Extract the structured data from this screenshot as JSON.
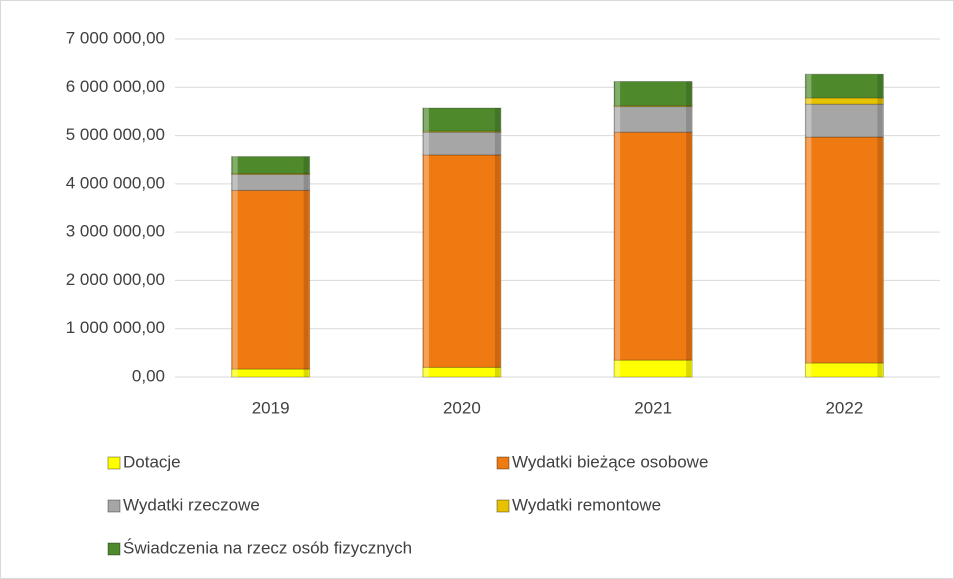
{
  "chart_data": {
    "type": "stacked_bar",
    "categories": [
      "2019",
      "2020",
      "2021",
      "2022"
    ],
    "series": [
      {
        "name": "Dotacje",
        "color": "#ffff00",
        "values": [
          165000,
          200000,
          350000,
          290000
        ]
      },
      {
        "name": "Wydatki bieżące osobowe",
        "color": "#f07a12",
        "values": [
          3700000,
          4400000,
          4720000,
          4680000
        ]
      },
      {
        "name": "Wydatki rzeczowe",
        "color": "#a6a6a6",
        "values": [
          330000,
          470000,
          530000,
          680000
        ]
      },
      {
        "name": "Wydatki remontowe",
        "color": "#e6c200",
        "values": [
          20000,
          20000,
          20000,
          130000
        ]
      },
      {
        "name": "Świadczenia na rzecz osób fizycznych",
        "color": "#4e8a2c",
        "values": [
          350000,
          480000,
          500000,
          490000
        ]
      }
    ],
    "ylim": [
      0,
      7000000
    ],
    "yticks": [
      {
        "value": 0,
        "label": "0,00"
      },
      {
        "value": 1000000,
        "label": "1 000 000,00"
      },
      {
        "value": 2000000,
        "label": "2 000 000,00"
      },
      {
        "value": 3000000,
        "label": "3 000 000,00"
      },
      {
        "value": 4000000,
        "label": "4 000 000,00"
      },
      {
        "value": 5000000,
        "label": "5 000 000,00"
      },
      {
        "value": 6000000,
        "label": "6 000 000,00"
      },
      {
        "value": 7000000,
        "label": "7 000 000,00"
      }
    ],
    "grid": true,
    "legend": "bottom"
  }
}
